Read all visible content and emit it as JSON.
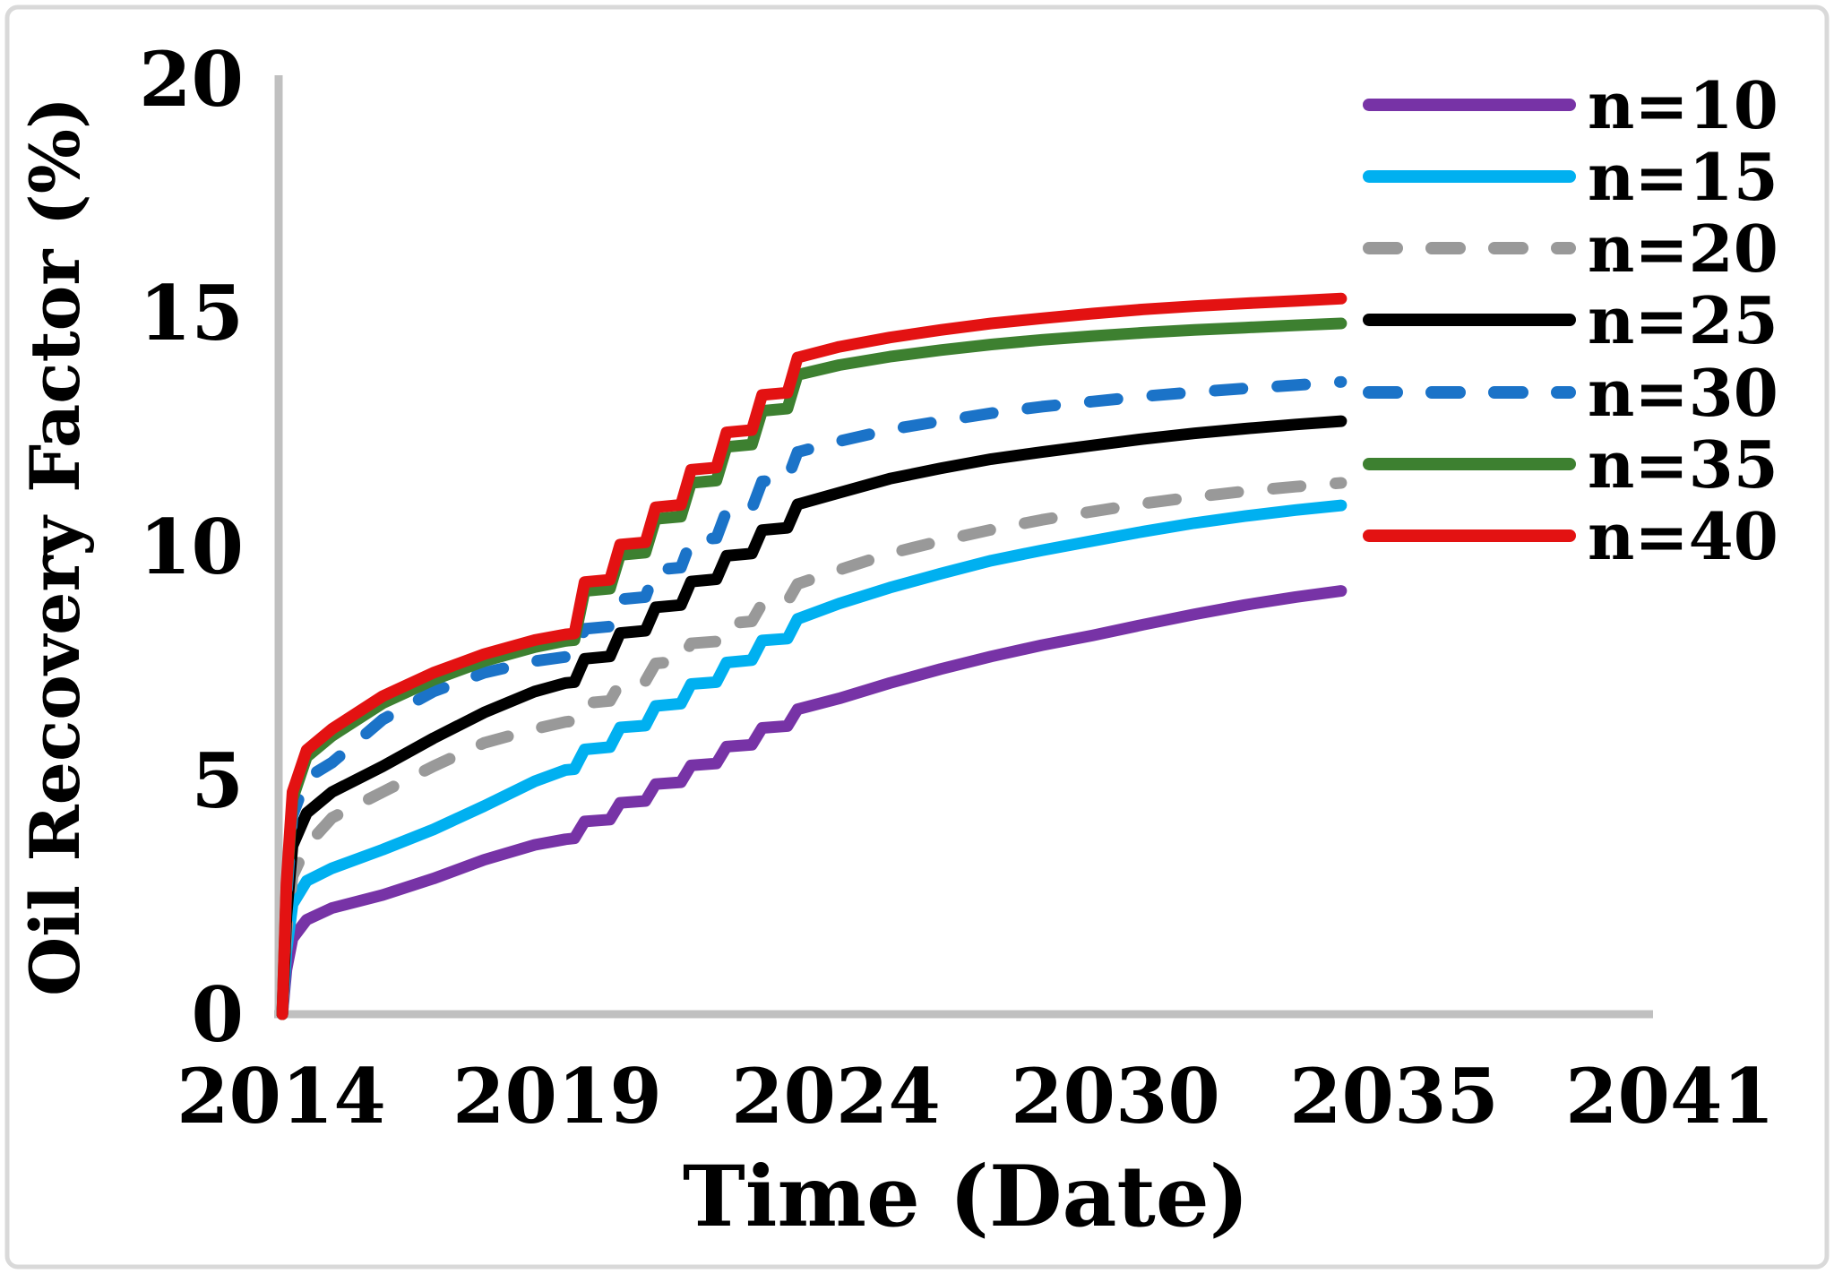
{
  "figure": {
    "background_color": "#ffffff",
    "frame_border_color": "#d9d9d9",
    "axis_line_color": "#c0c0c0",
    "text_color": "#000000"
  },
  "chart_data": {
    "type": "line",
    "title": "",
    "xlabel": "Time (Date)",
    "ylabel": "Oil Recovery Factor (%)",
    "xlim_years": [
      2014,
      2041.4
    ],
    "ylim": [
      0,
      20
    ],
    "grid": false,
    "legend_position": "right-top",
    "x_ticks": [
      "2014",
      "2019",
      "2024",
      "2030",
      "2035",
      "2041"
    ],
    "y_ticks": [
      "0",
      "5",
      "10",
      "15",
      "20"
    ],
    "y_tick_values": [
      0,
      5,
      10,
      15,
      20
    ],
    "series": [
      {
        "name": "n=10",
        "color": "#7733a6",
        "style": "solid",
        "points": [
          [
            2014.02,
            0
          ],
          [
            2014.1,
            0.95
          ],
          [
            2014.22,
            1.62
          ],
          [
            2014.5,
            2.02
          ],
          [
            2015,
            2.27
          ],
          [
            2016,
            2.55
          ],
          [
            2017,
            2.9
          ],
          [
            2018,
            3.3
          ],
          [
            2019,
            3.62
          ],
          [
            2019.6,
            3.74
          ],
          [
            2019.78,
            3.76
          ],
          [
            2019.98,
            4.12
          ],
          [
            2020.48,
            4.16
          ],
          [
            2020.68,
            4.52
          ],
          [
            2021.18,
            4.56
          ],
          [
            2021.38,
            4.92
          ],
          [
            2021.88,
            4.96
          ],
          [
            2022.08,
            5.32
          ],
          [
            2022.58,
            5.36
          ],
          [
            2022.78,
            5.72
          ],
          [
            2023.28,
            5.76
          ],
          [
            2023.48,
            6.12
          ],
          [
            2023.98,
            6.16
          ],
          [
            2024.18,
            6.52
          ],
          [
            2025,
            6.75
          ],
          [
            2026,
            7.08
          ],
          [
            2027,
            7.38
          ],
          [
            2028,
            7.65
          ],
          [
            2029,
            7.89
          ],
          [
            2030,
            8.1
          ],
          [
            2031,
            8.33
          ],
          [
            2032,
            8.55
          ],
          [
            2033,
            8.75
          ],
          [
            2034,
            8.92
          ],
          [
            2034.9,
            9.05
          ]
        ]
      },
      {
        "name": "n=15",
        "color": "#00b0f0",
        "style": "solid",
        "points": [
          [
            2014.02,
            0
          ],
          [
            2014.1,
            1.35
          ],
          [
            2014.22,
            2.35
          ],
          [
            2014.5,
            2.85
          ],
          [
            2015,
            3.12
          ],
          [
            2016,
            3.52
          ],
          [
            2017,
            3.95
          ],
          [
            2018,
            4.45
          ],
          [
            2019,
            4.98
          ],
          [
            2019.6,
            5.22
          ],
          [
            2019.78,
            5.24
          ],
          [
            2019.98,
            5.66
          ],
          [
            2020.48,
            5.71
          ],
          [
            2020.68,
            6.13
          ],
          [
            2021.18,
            6.17
          ],
          [
            2021.38,
            6.59
          ],
          [
            2021.88,
            6.64
          ],
          [
            2022.08,
            7.06
          ],
          [
            2022.58,
            7.1
          ],
          [
            2022.78,
            7.52
          ],
          [
            2023.28,
            7.57
          ],
          [
            2023.48,
            7.99
          ],
          [
            2023.98,
            8.03
          ],
          [
            2024.18,
            8.45
          ],
          [
            2025,
            8.78
          ],
          [
            2026,
            9.12
          ],
          [
            2027,
            9.42
          ],
          [
            2028,
            9.7
          ],
          [
            2029,
            9.92
          ],
          [
            2030,
            10.12
          ],
          [
            2031,
            10.32
          ],
          [
            2032,
            10.5
          ],
          [
            2033,
            10.65
          ],
          [
            2034,
            10.78
          ],
          [
            2034.9,
            10.88
          ]
        ]
      },
      {
        "name": "n=20",
        "color": "#999999",
        "style": "dashed",
        "points": [
          [
            2014.02,
            0
          ],
          [
            2014.1,
            1.75
          ],
          [
            2014.22,
            2.95
          ],
          [
            2014.5,
            3.6
          ],
          [
            2015,
            4.2
          ],
          [
            2016,
            4.75
          ],
          [
            2017,
            5.3
          ],
          [
            2018,
            5.8
          ],
          [
            2019,
            6.1
          ],
          [
            2019.6,
            6.25
          ],
          [
            2019.78,
            6.27
          ],
          [
            2019.98,
            6.65
          ],
          [
            2020.48,
            6.7
          ],
          [
            2020.68,
            7.08
          ],
          [
            2021.18,
            7.12
          ],
          [
            2021.38,
            7.5
          ],
          [
            2021.88,
            7.55
          ],
          [
            2022.08,
            7.93
          ],
          [
            2022.58,
            7.97
          ],
          [
            2022.78,
            8.35
          ],
          [
            2023.28,
            8.4
          ],
          [
            2023.48,
            8.78
          ],
          [
            2023.98,
            8.82
          ],
          [
            2024.18,
            9.2
          ],
          [
            2025,
            9.5
          ],
          [
            2026,
            9.85
          ],
          [
            2027,
            10.12
          ],
          [
            2028,
            10.36
          ],
          [
            2029,
            10.57
          ],
          [
            2030,
            10.75
          ],
          [
            2031,
            10.92
          ],
          [
            2032,
            11.06
          ],
          [
            2033,
            11.18
          ],
          [
            2034,
            11.28
          ],
          [
            2034.9,
            11.36
          ]
        ]
      },
      {
        "name": "n=25",
        "color": "#000000",
        "style": "solid",
        "points": [
          [
            2014.02,
            0
          ],
          [
            2014.1,
            2.1
          ],
          [
            2014.22,
            3.6
          ],
          [
            2014.5,
            4.3
          ],
          [
            2015,
            4.75
          ],
          [
            2016,
            5.3
          ],
          [
            2017,
            5.9
          ],
          [
            2018,
            6.45
          ],
          [
            2019,
            6.9
          ],
          [
            2019.6,
            7.08
          ],
          [
            2019.78,
            7.1
          ],
          [
            2019.98,
            7.6
          ],
          [
            2020.48,
            7.65
          ],
          [
            2020.68,
            8.15
          ],
          [
            2021.18,
            8.2
          ],
          [
            2021.38,
            8.7
          ],
          [
            2021.88,
            8.75
          ],
          [
            2022.08,
            9.25
          ],
          [
            2022.58,
            9.3
          ],
          [
            2022.78,
            9.8
          ],
          [
            2023.28,
            9.85
          ],
          [
            2023.48,
            10.35
          ],
          [
            2023.98,
            10.4
          ],
          [
            2024.18,
            10.9
          ],
          [
            2025,
            11.15
          ],
          [
            2026,
            11.45
          ],
          [
            2027,
            11.67
          ],
          [
            2028,
            11.87
          ],
          [
            2029,
            12.02
          ],
          [
            2030,
            12.16
          ],
          [
            2031,
            12.3
          ],
          [
            2032,
            12.42
          ],
          [
            2033,
            12.52
          ],
          [
            2034,
            12.61
          ],
          [
            2034.9,
            12.68
          ]
        ]
      },
      {
        "name": "n=30",
        "color": "#1b73c8",
        "style": "dashed",
        "points": [
          [
            2014.02,
            0
          ],
          [
            2014.1,
            2.5
          ],
          [
            2014.22,
            4.25
          ],
          [
            2014.5,
            5.05
          ],
          [
            2015,
            5.38
          ],
          [
            2016,
            6.3
          ],
          [
            2017,
            6.9
          ],
          [
            2018,
            7.3
          ],
          [
            2019,
            7.55
          ],
          [
            2019.6,
            7.64
          ],
          [
            2019.78,
            7.66
          ],
          [
            2019.98,
            8.24
          ],
          [
            2020.48,
            8.29
          ],
          [
            2020.68,
            8.87
          ],
          [
            2021.18,
            8.92
          ],
          [
            2021.38,
            9.5
          ],
          [
            2021.88,
            9.55
          ],
          [
            2022.08,
            10.13
          ],
          [
            2022.58,
            10.18
          ],
          [
            2022.78,
            10.76
          ],
          [
            2023.28,
            10.81
          ],
          [
            2023.48,
            11.39
          ],
          [
            2023.98,
            11.44
          ],
          [
            2024.18,
            12.02
          ],
          [
            2025,
            12.25
          ],
          [
            2026,
            12.5
          ],
          [
            2027,
            12.68
          ],
          [
            2028,
            12.85
          ],
          [
            2029,
            12.99
          ],
          [
            2030,
            13.1
          ],
          [
            2031,
            13.21
          ],
          [
            2032,
            13.3
          ],
          [
            2033,
            13.38
          ],
          [
            2034,
            13.45
          ],
          [
            2034.9,
            13.52
          ]
        ]
      },
      {
        "name": "n=35",
        "color": "#3d8030",
        "style": "solid",
        "points": [
          [
            2014.02,
            0
          ],
          [
            2014.1,
            2.7
          ],
          [
            2014.22,
            4.6
          ],
          [
            2014.5,
            5.5
          ],
          [
            2015,
            5.95
          ],
          [
            2016,
            6.65
          ],
          [
            2017,
            7.15
          ],
          [
            2018,
            7.55
          ],
          [
            2019,
            7.85
          ],
          [
            2019.6,
            7.98
          ],
          [
            2019.78,
            8.0
          ],
          [
            2019.98,
            9.05
          ],
          [
            2020.48,
            9.1
          ],
          [
            2020.68,
            9.82
          ],
          [
            2021.18,
            9.87
          ],
          [
            2021.38,
            10.59
          ],
          [
            2021.88,
            10.64
          ],
          [
            2022.08,
            11.36
          ],
          [
            2022.58,
            11.41
          ],
          [
            2022.78,
            12.13
          ],
          [
            2023.28,
            12.18
          ],
          [
            2023.48,
            12.9
          ],
          [
            2023.98,
            12.95
          ],
          [
            2024.18,
            13.67
          ],
          [
            2025,
            13.88
          ],
          [
            2026,
            14.06
          ],
          [
            2027,
            14.2
          ],
          [
            2028,
            14.32
          ],
          [
            2029,
            14.42
          ],
          [
            2030,
            14.5
          ],
          [
            2031,
            14.57
          ],
          [
            2032,
            14.63
          ],
          [
            2033,
            14.68
          ],
          [
            2034,
            14.73
          ],
          [
            2034.9,
            14.77
          ]
        ]
      },
      {
        "name": "n=40",
        "color": "#e31212",
        "style": "solid",
        "points": [
          [
            2014.02,
            0
          ],
          [
            2014.1,
            2.8
          ],
          [
            2014.22,
            4.75
          ],
          [
            2014.5,
            5.65
          ],
          [
            2015,
            6.1
          ],
          [
            2016,
            6.8
          ],
          [
            2017,
            7.3
          ],
          [
            2018,
            7.7
          ],
          [
            2019,
            8.0
          ],
          [
            2019.6,
            8.12
          ],
          [
            2019.78,
            8.14
          ],
          [
            2019.98,
            9.24
          ],
          [
            2020.48,
            9.29
          ],
          [
            2020.68,
            10.04
          ],
          [
            2021.18,
            10.09
          ],
          [
            2021.38,
            10.84
          ],
          [
            2021.88,
            10.89
          ],
          [
            2022.08,
            11.64
          ],
          [
            2022.58,
            11.69
          ],
          [
            2022.78,
            12.44
          ],
          [
            2023.28,
            12.49
          ],
          [
            2023.48,
            13.24
          ],
          [
            2023.98,
            13.29
          ],
          [
            2024.18,
            14.04
          ],
          [
            2025,
            14.27
          ],
          [
            2026,
            14.47
          ],
          [
            2027,
            14.63
          ],
          [
            2028,
            14.77
          ],
          [
            2029,
            14.88
          ],
          [
            2030,
            14.98
          ],
          [
            2031,
            15.07
          ],
          [
            2032,
            15.14
          ],
          [
            2033,
            15.2
          ],
          [
            2034,
            15.25
          ],
          [
            2034.9,
            15.3
          ]
        ]
      }
    ]
  }
}
